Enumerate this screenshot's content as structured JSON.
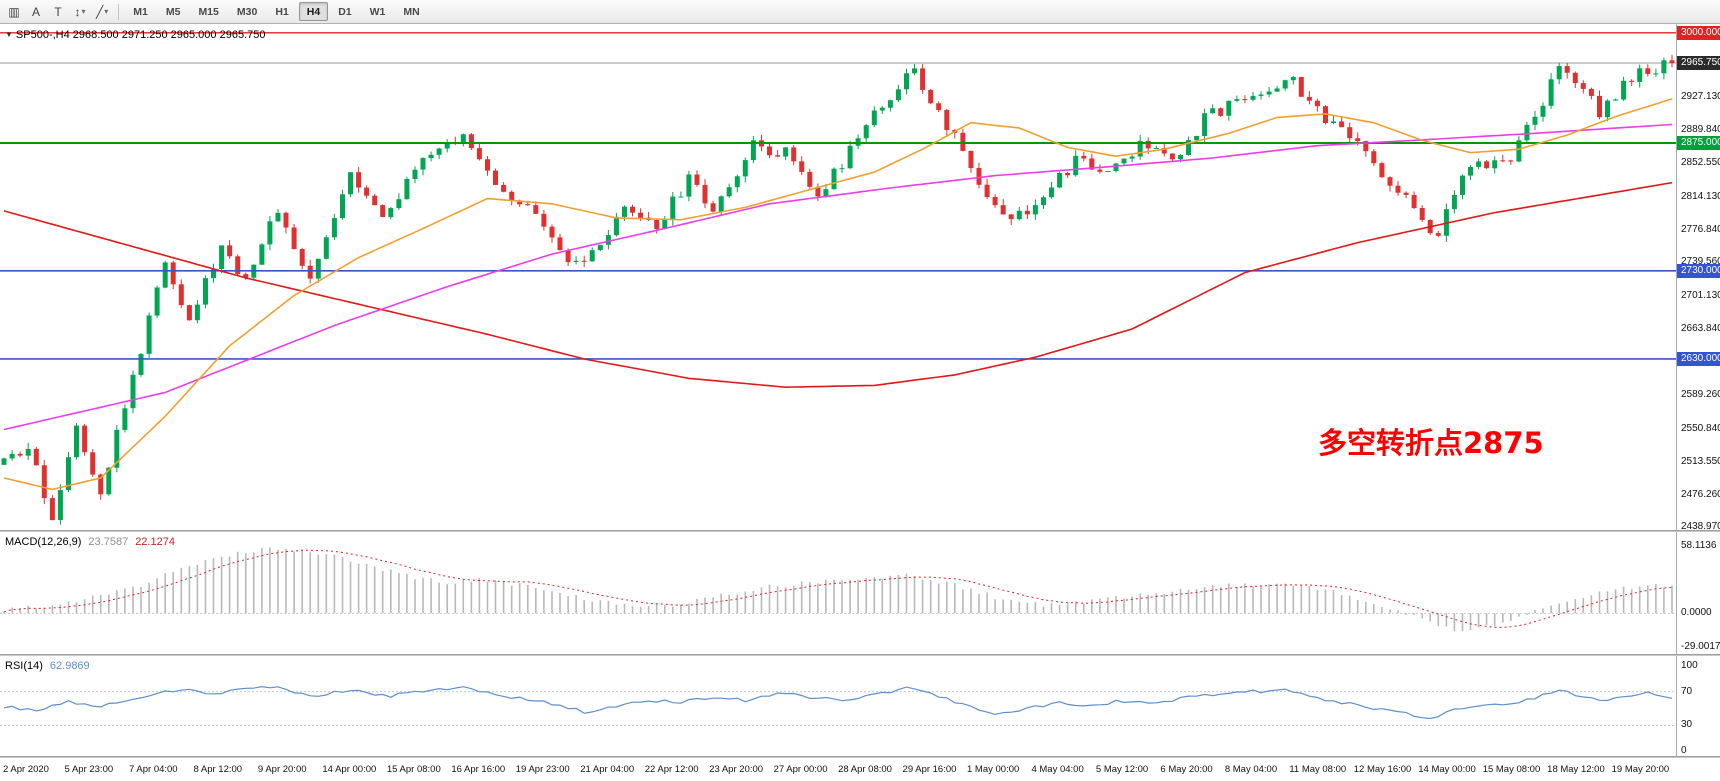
{
  "toolbar": {
    "icons": [
      {
        "name": "charts-icon",
        "glyph": "▥"
      },
      {
        "name": "annotation-letter-icon",
        "glyph": "A"
      },
      {
        "name": "text-tool-icon",
        "glyph": "T"
      },
      {
        "name": "cursor-tools-icon",
        "glyph": "↕",
        "dropdown": "▾"
      },
      {
        "name": "line-tools-icon",
        "glyph": "╱",
        "dropdown": "▾"
      }
    ],
    "timeframes": [
      "M1",
      "M5",
      "M15",
      "M30",
      "H1",
      "H4",
      "D1",
      "W1",
      "MN"
    ],
    "active_timeframe": "H4"
  },
  "header": {
    "collapse_icon": "▼",
    "symbol_info": "SP500-,H4  2968.500 2971.250 2965.000 2965.750"
  },
  "annotation": {
    "text": "多空转折点2875",
    "color": "#fe0000"
  },
  "price_axis": {
    "labels": [
      "2965.750",
      "2927.130",
      "2889.840",
      "2852.550",
      "2814.130",
      "2776.840",
      "2739.560",
      "2701.130",
      "2663.840",
      "2626.550",
      "2589.260",
      "2550.840",
      "2513.550",
      "2476.260",
      "2438.970"
    ],
    "tags": [
      {
        "label": "3000.000",
        "price": 3000.0,
        "bg": "#e02222"
      },
      {
        "label": "2965.750",
        "price": 2965.75,
        "bg": "#2b2b2b"
      },
      {
        "label": "2875.000",
        "price": 2875.0,
        "bg": "#00a03c"
      },
      {
        "label": "2730.000",
        "price": 2730.0,
        "bg": "#3555d0"
      },
      {
        "label": "2630.000",
        "price": 2630.0,
        "bg": "#3555d0"
      }
    ]
  },
  "colors": {
    "up": "#00a651",
    "down": "#e03131",
    "macd_hist": "#b8b8b8",
    "macd_signal": "#dd2222",
    "rsi_line": "#5b8fd0",
    "current_price_line": "#9a9a9a",
    "grid_dotted": "#c8c8c8"
  },
  "chart_data": {
    "type": "candlestick",
    "title": "SP500-,H4",
    "timeframe": "H4",
    "bars": 208,
    "ohlc_current": {
      "open": 2968.5,
      "high": 2971.25,
      "low": 2965.0,
      "close": 2965.75
    },
    "ylim": [
      2436,
      3010
    ],
    "price_path": [
      [
        0,
        2510
      ],
      [
        3,
        2527
      ],
      [
        6,
        2452
      ],
      [
        9,
        2556
      ],
      [
        12,
        2482
      ],
      [
        17,
        2640
      ],
      [
        20,
        2743
      ],
      [
        23,
        2676
      ],
      [
        27,
        2756
      ],
      [
        30,
        2722
      ],
      [
        34,
        2801
      ],
      [
        38,
        2716
      ],
      [
        43,
        2846
      ],
      [
        47,
        2791
      ],
      [
        53,
        2864
      ],
      [
        57,
        2881
      ],
      [
        61,
        2832
      ],
      [
        65,
        2801
      ],
      [
        70,
        2737
      ],
      [
        73,
        2746
      ],
      [
        77,
        2796
      ],
      [
        81,
        2781
      ],
      [
        85,
        2832
      ],
      [
        88,
        2801
      ],
      [
        93,
        2871
      ],
      [
        97,
        2866
      ],
      [
        101,
        2816
      ],
      [
        105,
        2866
      ],
      [
        110,
        2931
      ],
      [
        113,
        2956
      ],
      [
        116,
        2906
      ],
      [
        119,
        2871
      ],
      [
        121,
        2826
      ],
      [
        125,
        2791
      ],
      [
        129,
        2811
      ],
      [
        133,
        2856
      ],
      [
        136,
        2841
      ],
      [
        141,
        2871
      ],
      [
        145,
        2858
      ],
      [
        149,
        2901
      ],
      [
        153,
        2926
      ],
      [
        157,
        2936
      ],
      [
        160,
        2946
      ],
      [
        164,
        2901
      ],
      [
        168,
        2871
      ],
      [
        172,
        2831
      ],
      [
        176,
        2791
      ],
      [
        178,
        2768
      ],
      [
        181,
        2841
      ],
      [
        184,
        2851
      ],
      [
        187,
        2861
      ],
      [
        190,
        2901
      ],
      [
        193,
        2963
      ],
      [
        196,
        2941
      ],
      [
        198,
        2911
      ],
      [
        201,
        2941
      ],
      [
        204,
        2959
      ],
      [
        207,
        2965.75
      ]
    ],
    "levels": [
      {
        "price": 3000.0,
        "color": "#e02222",
        "width": 1.4
      },
      {
        "price": 2875.0,
        "color": "#009a00",
        "width": 2
      },
      {
        "price": 2730.0,
        "color": "#3555d0",
        "width": 1.6
      },
      {
        "price": 2630.0,
        "color": "#3555d0",
        "width": 1.6
      }
    ],
    "moving_averages": [
      {
        "name": "ma-slow-red-line",
        "color": "#e01818",
        "path": [
          [
            0,
            2798
          ],
          [
            15,
            2760
          ],
          [
            30,
            2722
          ],
          [
            45,
            2690
          ],
          [
            60,
            2658
          ],
          [
            72,
            2630
          ],
          [
            85,
            2608
          ],
          [
            97,
            2598
          ],
          [
            108,
            2600
          ],
          [
            118,
            2612
          ],
          [
            128,
            2632
          ],
          [
            140,
            2664
          ],
          [
            154,
            2728
          ],
          [
            168,
            2762
          ],
          [
            185,
            2796
          ],
          [
            207,
            2830
          ]
        ]
      },
      {
        "name": "ma-mid-magenta-line",
        "color": "#e93ee9",
        "path": [
          [
            0,
            2550
          ],
          [
            20,
            2592
          ],
          [
            41,
            2668
          ],
          [
            55,
            2712
          ],
          [
            68,
            2749
          ],
          [
            82,
            2778
          ],
          [
            95,
            2806
          ],
          [
            110,
            2824
          ],
          [
            123,
            2838
          ],
          [
            137,
            2848
          ],
          [
            150,
            2858
          ],
          [
            163,
            2872
          ],
          [
            175,
            2878
          ],
          [
            190,
            2886
          ],
          [
            207,
            2896
          ]
        ]
      },
      {
        "name": "ma-fast-orange-line",
        "color": "#f0a030",
        "path": [
          [
            0,
            2495
          ],
          [
            6,
            2482
          ],
          [
            12,
            2495
          ],
          [
            20,
            2565
          ],
          [
            28,
            2645
          ],
          [
            36,
            2702
          ],
          [
            44,
            2745
          ],
          [
            52,
            2778
          ],
          [
            60,
            2812
          ],
          [
            68,
            2806
          ],
          [
            76,
            2790
          ],
          [
            84,
            2788
          ],
          [
            92,
            2802
          ],
          [
            100,
            2822
          ],
          [
            108,
            2842
          ],
          [
            114,
            2868
          ],
          [
            120,
            2898
          ],
          [
            126,
            2892
          ],
          [
            132,
            2870
          ],
          [
            138,
            2860
          ],
          [
            144,
            2868
          ],
          [
            152,
            2886
          ],
          [
            158,
            2904
          ],
          [
            164,
            2908
          ],
          [
            170,
            2898
          ],
          [
            176,
            2878
          ],
          [
            182,
            2864
          ],
          [
            188,
            2868
          ],
          [
            194,
            2884
          ],
          [
            200,
            2905
          ],
          [
            207,
            2925
          ]
        ]
      }
    ],
    "macd": {
      "label": "MACD(12,26,9)",
      "value_main": "23.7587",
      "value_signal": "22.1274",
      "axis_labels": [
        "58.1136",
        "0.0000",
        "-29.0017"
      ],
      "axis_values": [
        58.1136,
        0,
        -29.0017
      ],
      "ylim": [
        -35,
        70
      ],
      "path": [
        [
          0,
          3
        ],
        [
          5,
          6
        ],
        [
          10,
          12
        ],
        [
          16,
          22
        ],
        [
          22,
          38
        ],
        [
          28,
          50
        ],
        [
          33,
          56
        ],
        [
          38,
          54
        ],
        [
          44,
          44
        ],
        [
          50,
          32
        ],
        [
          55,
          26
        ],
        [
          60,
          29
        ],
        [
          66,
          22
        ],
        [
          72,
          13
        ],
        [
          78,
          7
        ],
        [
          82,
          6
        ],
        [
          88,
          14
        ],
        [
          94,
          22
        ],
        [
          100,
          27
        ],
        [
          106,
          30
        ],
        [
          112,
          33
        ],
        [
          118,
          24
        ],
        [
          124,
          12
        ],
        [
          129,
          7
        ],
        [
          134,
          10
        ],
        [
          140,
          15
        ],
        [
          146,
          20
        ],
        [
          152,
          24
        ],
        [
          158,
          25
        ],
        [
          164,
          20
        ],
        [
          170,
          8
        ],
        [
          174,
          0
        ],
        [
          178,
          -10
        ],
        [
          181,
          -17
        ],
        [
          184,
          -12
        ],
        [
          188,
          -4
        ],
        [
          192,
          6
        ],
        [
          196,
          14
        ],
        [
          200,
          20
        ],
        [
          204,
          24
        ],
        [
          207,
          24
        ]
      ]
    },
    "rsi": {
      "label": "RSI(14)",
      "value": "62.9869",
      "axis_labels": [
        "100",
        "70",
        "30",
        "0"
      ],
      "axis_values": [
        100,
        70,
        30,
        0
      ],
      "levels": [
        70,
        30
      ],
      "ylim": [
        -6,
        112
      ],
      "path": [
        [
          0,
          52
        ],
        [
          4,
          48
        ],
        [
          8,
          58
        ],
        [
          12,
          52
        ],
        [
          18,
          66
        ],
        [
          22,
          72
        ],
        [
          26,
          68
        ],
        [
          30,
          73
        ],
        [
          34,
          75
        ],
        [
          38,
          64
        ],
        [
          43,
          72
        ],
        [
          48,
          65
        ],
        [
          53,
          71
        ],
        [
          57,
          74
        ],
        [
          62,
          64
        ],
        [
          66,
          60
        ],
        [
          72,
          46
        ],
        [
          76,
          52
        ],
        [
          80,
          60
        ],
        [
          84,
          58
        ],
        [
          88,
          64
        ],
        [
          92,
          60
        ],
        [
          96,
          68
        ],
        [
          100,
          64
        ],
        [
          104,
          58
        ],
        [
          108,
          66
        ],
        [
          112,
          74
        ],
        [
          116,
          64
        ],
        [
          119,
          56
        ],
        [
          123,
          43
        ],
        [
          127,
          50
        ],
        [
          131,
          56
        ],
        [
          135,
          54
        ],
        [
          139,
          59
        ],
        [
          143,
          58
        ],
        [
          147,
          63
        ],
        [
          151,
          68
        ],
        [
          155,
          70
        ],
        [
          159,
          72
        ],
        [
          163,
          61
        ],
        [
          167,
          56
        ],
        [
          171,
          48
        ],
        [
          175,
          42
        ],
        [
          177,
          38
        ],
        [
          180,
          50
        ],
        [
          183,
          53
        ],
        [
          186,
          55
        ],
        [
          189,
          60
        ],
        [
          193,
          72
        ],
        [
          196,
          64
        ],
        [
          198,
          58
        ],
        [
          201,
          65
        ],
        [
          204,
          69
        ],
        [
          207,
          63
        ]
      ]
    },
    "time_axis": [
      {
        "bar": 1,
        "label": "2 Apr 2020"
      },
      {
        "bar": 9,
        "label": "5 Apr 23:00"
      },
      {
        "bar": 17,
        "label": "7 Apr 04:00"
      },
      {
        "bar": 25,
        "label": "8 Apr 12:00"
      },
      {
        "bar": 33,
        "label": "9 Apr 20:00"
      },
      {
        "bar": 41,
        "label": "14 Apr 00:00"
      },
      {
        "bar": 49,
        "label": "15 Apr 08:00"
      },
      {
        "bar": 57,
        "label": "16 Apr 16:00"
      },
      {
        "bar": 65,
        "label": "19 Apr 23:00"
      },
      {
        "bar": 73,
        "label": "21 Apr 04:00"
      },
      {
        "bar": 81,
        "label": "22 Apr 12:00"
      },
      {
        "bar": 89,
        "label": "23 Apr 20:00"
      },
      {
        "bar": 97,
        "label": "27 Apr 00:00"
      },
      {
        "bar": 105,
        "label": "28 Apr 08:00"
      },
      {
        "bar": 113,
        "label": "29 Apr 16:00"
      },
      {
        "bar": 121,
        "label": "1 May 00:00"
      },
      {
        "bar": 129,
        "label": "4 May 04:00"
      },
      {
        "bar": 137,
        "label": "5 May 12:00"
      },
      {
        "bar": 145,
        "label": "6 May 20:00"
      },
      {
        "bar": 153,
        "label": "8 May 04:00"
      },
      {
        "bar": 161,
        "label": "11 May 08:00"
      },
      {
        "bar": 169,
        "label": "12 May 16:00"
      },
      {
        "bar": 177,
        "label": "14 May 00:00"
      },
      {
        "bar": 185,
        "label": "15 May 08:00"
      },
      {
        "bar": 193,
        "label": "18 May 12:00"
      },
      {
        "bar": 201,
        "label": "19 May 20:00"
      }
    ]
  }
}
